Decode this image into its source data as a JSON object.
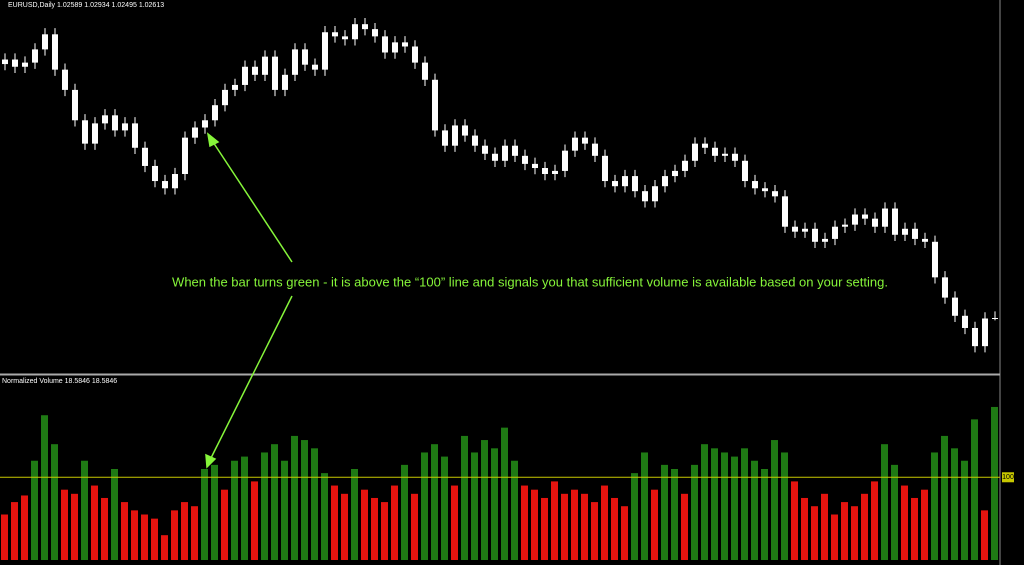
{
  "chart_data": [
    {
      "type": "candlestick",
      "title": "EURUSD,Daily",
      "color": "#ffffff",
      "annotation": "When the bar turns green - it is above the “100” line and signals you that sufficient volume is available based on your setting.",
      "ylim": [
        1.0,
        1.18
      ],
      "open": [
        1.149,
        1.1512,
        1.1477,
        1.1497,
        1.1561,
        1.1634,
        1.1463,
        1.1365,
        1.1218,
        1.1105,
        1.1203,
        1.1242,
        1.1169,
        1.1203,
        1.1085,
        1.0997,
        1.0924,
        1.0889,
        1.0958,
        1.1134,
        1.1183,
        1.1218,
        1.1291,
        1.1365,
        1.1389,
        1.1477,
        1.1438,
        1.1526,
        1.1365,
        1.1438,
        1.1561,
        1.1487,
        1.1463,
        1.1644,
        1.1624,
        1.161,
        1.1683,
        1.1659,
        1.1624,
        1.1546,
        1.1595,
        1.1575,
        1.1497,
        1.1414,
        1.1169,
        1.1095,
        1.1193,
        1.1144,
        1.1095,
        1.1056,
        1.1022,
        1.1095,
        1.1046,
        1.1007,
        1.0987,
        1.0958,
        1.0973,
        1.1071,
        1.1134,
        1.1105,
        1.1046,
        1.0924,
        1.0899,
        1.0948,
        1.0875,
        1.0826,
        1.0899,
        1.0948,
        1.0973,
        1.1022,
        1.1105,
        1.1085,
        1.1046,
        1.1056,
        1.1022,
        1.0924,
        1.0889,
        1.0875,
        1.085,
        1.0703,
        1.0679,
        1.0693,
        1.063,
        1.0644,
        1.0703,
        1.0713,
        1.0762,
        1.0742,
        1.0703,
        1.0791,
        1.0664,
        1.0693,
        1.0644,
        1.063,
        1.0458,
        1.036,
        1.0272,
        1.0213,
        1.0125,
        1.02589
      ],
      "high": [
        1.1542,
        1.1542,
        1.1527,
        1.1591,
        1.1664,
        1.1664,
        1.1493,
        1.1395,
        1.1248,
        1.1233,
        1.1272,
        1.1272,
        1.1233,
        1.1233,
        1.1115,
        1.1027,
        1.0954,
        1.0988,
        1.1164,
        1.1213,
        1.1248,
        1.1321,
        1.1395,
        1.1419,
        1.1507,
        1.1507,
        1.1556,
        1.1556,
        1.1468,
        1.1591,
        1.1591,
        1.1517,
        1.1674,
        1.1674,
        1.1654,
        1.1713,
        1.1713,
        1.1689,
        1.1654,
        1.1625,
        1.1625,
        1.1605,
        1.1527,
        1.1444,
        1.1199,
        1.1223,
        1.1223,
        1.1174,
        1.1125,
        1.1086,
        1.1125,
        1.1125,
        1.1076,
        1.1037,
        1.1017,
        1.1003,
        1.1101,
        1.1164,
        1.1164,
        1.1135,
        1.1076,
        1.0954,
        1.0978,
        1.0978,
        1.0905,
        1.0929,
        1.0978,
        1.1003,
        1.1052,
        1.1135,
        1.1135,
        1.1115,
        1.1086,
        1.1086,
        1.1052,
        1.0954,
        1.0919,
        1.0905,
        1.088,
        1.0733,
        1.0723,
        1.0723,
        1.0674,
        1.0733,
        1.0743,
        1.0792,
        1.0792,
        1.0772,
        1.0821,
        1.0821,
        1.0723,
        1.0723,
        1.0674,
        1.066,
        1.0488,
        1.039,
        1.0302,
        1.0243,
        1.0289,
        1.02934
      ],
      "low": [
        1.146,
        1.1447,
        1.1447,
        1.1467,
        1.1531,
        1.1433,
        1.1335,
        1.1188,
        1.1075,
        1.1075,
        1.1173,
        1.1139,
        1.1139,
        1.1055,
        1.0967,
        1.0894,
        1.0859,
        1.0859,
        1.0928,
        1.1104,
        1.1153,
        1.1188,
        1.1261,
        1.1335,
        1.1359,
        1.1408,
        1.1408,
        1.1335,
        1.1335,
        1.1408,
        1.1457,
        1.1433,
        1.1433,
        1.1594,
        1.158,
        1.158,
        1.1629,
        1.1594,
        1.1516,
        1.1516,
        1.1545,
        1.1467,
        1.1384,
        1.1139,
        1.1065,
        1.1065,
        1.1114,
        1.1065,
        1.1026,
        1.0992,
        1.0992,
        1.1016,
        1.0977,
        1.0957,
        1.0928,
        1.0928,
        1.0943,
        1.1041,
        1.1075,
        1.1016,
        1.0894,
        1.0869,
        1.0869,
        1.0845,
        1.0796,
        1.0796,
        1.0869,
        1.0918,
        1.0943,
        1.0992,
        1.1055,
        1.1016,
        1.1016,
        1.0992,
        1.0894,
        1.0859,
        1.0845,
        1.082,
        1.0673,
        1.0649,
        1.0649,
        1.06,
        1.06,
        1.0614,
        1.0673,
        1.0683,
        1.0712,
        1.0673,
        1.0673,
        1.0634,
        1.0634,
        1.0614,
        1.06,
        1.0428,
        1.033,
        1.0242,
        1.0183,
        1.0095,
        1.0095,
        1.02495
      ],
      "close": [
        1.1512,
        1.1477,
        1.1497,
        1.1561,
        1.1634,
        1.1463,
        1.1365,
        1.1218,
        1.1105,
        1.1203,
        1.1242,
        1.1169,
        1.1203,
        1.1085,
        1.0997,
        1.0924,
        1.0889,
        1.0958,
        1.1134,
        1.1183,
        1.1218,
        1.1291,
        1.1365,
        1.1389,
        1.1477,
        1.1438,
        1.1526,
        1.1365,
        1.1438,
        1.1561,
        1.1487,
        1.1463,
        1.1644,
        1.1624,
        1.161,
        1.1683,
        1.1659,
        1.1624,
        1.1546,
        1.1595,
        1.1575,
        1.1497,
        1.1414,
        1.1169,
        1.1095,
        1.1193,
        1.1144,
        1.1095,
        1.1056,
        1.1022,
        1.1095,
        1.1046,
        1.1007,
        1.0987,
        1.0958,
        1.0973,
        1.1071,
        1.1134,
        1.1105,
        1.1046,
        1.0924,
        1.0899,
        1.0948,
        1.0875,
        1.0826,
        1.0899,
        1.0948,
        1.0973,
        1.1022,
        1.1105,
        1.1085,
        1.1046,
        1.1056,
        1.1022,
        1.0924,
        1.0889,
        1.0875,
        1.085,
        1.0703,
        1.0679,
        1.0693,
        1.063,
        1.0644,
        1.0703,
        1.0713,
        1.0762,
        1.0742,
        1.0703,
        1.0791,
        1.0664,
        1.0693,
        1.0644,
        1.063,
        1.0458,
        1.036,
        1.0272,
        1.0213,
        1.0125,
        1.02589,
        1.02613
      ]
    },
    {
      "type": "bar",
      "title": "Normalized Volume 18.5846 18.5846",
      "above_color": "#1f7a14",
      "below_color": "#e5140f",
      "level_color": "#c8c800",
      "ylim": [
        0,
        220
      ],
      "yticks": [
        100
      ],
      "values": [
        55,
        70,
        78,
        120,
        175,
        140,
        85,
        80,
        120,
        90,
        75,
        110,
        70,
        60,
        55,
        50,
        30,
        60,
        70,
        65,
        110,
        115,
        85,
        120,
        125,
        95,
        130,
        140,
        120,
        150,
        145,
        135,
        105,
        90,
        80,
        110,
        85,
        75,
        70,
        90,
        115,
        80,
        130,
        140,
        125,
        90,
        150,
        130,
        145,
        135,
        160,
        120,
        90,
        85,
        75,
        95,
        80,
        85,
        80,
        70,
        90,
        75,
        65,
        105,
        130,
        85,
        115,
        110,
        80,
        115,
        140,
        135,
        130,
        125,
        135,
        120,
        110,
        145,
        130,
        95,
        75,
        65,
        80,
        55,
        70,
        65,
        80,
        95,
        140,
        115,
        90,
        75,
        85,
        130,
        150,
        135,
        120,
        170,
        60,
        185
      ]
    }
  ]
}
